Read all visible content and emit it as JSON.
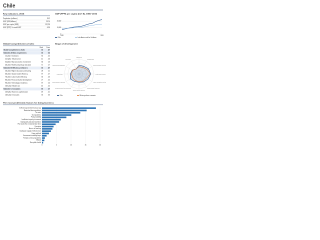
{
  "header": {
    "country": "Chile"
  },
  "key_indicators": {
    "title": "Key indicators, 2016",
    "rows": [
      [
        "Population (millions)",
        "18.2"
      ],
      [
        "GDP (US$ billions)",
        "247.0"
      ],
      [
        "GDP per capita (US$)",
        "13,576"
      ],
      [
        "GDP (PPP) % world GDP",
        "0.34"
      ]
    ]
  },
  "gdp_chart": {
    "type": "line",
    "title": "GDP (PPP) per capita (int'l $), 1990–2016",
    "x": [
      1990,
      1992,
      1994,
      1996,
      1998,
      2000,
      2002,
      2004,
      2006,
      2008,
      2010,
      2012,
      2014,
      2016
    ],
    "series": [
      {
        "name": "Chile",
        "color": "#1f4e8c",
        "values": [
          7000,
          8000,
          8900,
          10200,
          10900,
          11200,
          11700,
          13000,
          14600,
          16100,
          17000,
          19600,
          21300,
          22500
        ]
      },
      {
        "name": "Latin America and the Caribbean",
        "color": "#9dc3e6",
        "values": [
          8200,
          8600,
          9100,
          9400,
          9900,
          10200,
          10100,
          10800,
          11900,
          13000,
          13500,
          14600,
          15200,
          15300
        ]
      }
    ],
    "xlim": [
      1990,
      2016
    ],
    "ylim": [
      0,
      25000
    ],
    "yticks": [
      0,
      {
        "value": 10000,
        "label": "10,000"
      },
      {
        "value": 20000,
        "label": "20,000"
      }
    ]
  },
  "gci": {
    "title": "Global Competitiveness Index",
    "header": [
      "",
      "Rank",
      "Score"
    ],
    "rows": [
      [
        "Global Competitiveness Index",
        "33",
        "4.7"
      ],
      [
        "Subindex A: Basic requirements",
        "33",
        "5.2"
      ],
      [
        "1st pillar: Institutions",
        "35",
        "4.5"
      ],
      [
        "2nd pillar: Infrastructure",
        "41",
        "4.6"
      ],
      [
        "3rd pillar: Macroeconomic environment",
        "36",
        "5.3"
      ],
      [
        "4th pillar: Health and primary education",
        "71",
        "5.7"
      ],
      [
        "Subindex B: Efficiency enhancers",
        "33",
        "4.7"
      ],
      [
        "5th pillar: Higher education and training",
        "28",
        "5.1"
      ],
      [
        "6th pillar: Goods market efficiency",
        "37",
        "4.7"
      ],
      [
        "7th pillar: Labor market efficiency",
        "53",
        "4.3"
      ],
      [
        "8th pillar: Financial market development",
        "27",
        "4.5"
      ],
      [
        "9th pillar: Technological readiness",
        "37",
        "5.0"
      ],
      [
        "10th pillar: Market size",
        "45",
        "4.5"
      ],
      [
        "Subindex C: Innovation",
        "50",
        "3.7"
      ],
      [
        "11th pillar: Business sophistication",
        "49",
        "4.1"
      ],
      [
        "12th pillar: Innovation",
        "53",
        "3.3"
      ]
    ]
  },
  "stage_chart": {
    "type": "radar",
    "title": "Stage of development",
    "categories": [
      "Institutions",
      "Infrastructure",
      "Macroeconomic environment",
      "Health and primary education",
      "Higher education and training",
      "Goods market efficiency",
      "Labor market efficiency",
      "Financial market development",
      "Technological readiness",
      "Market size",
      "Business sophistication",
      "Innovation"
    ],
    "series": [
      {
        "name": "Chile",
        "color": "#1f4e8c",
        "values": [
          4.5,
          4.6,
          5.3,
          5.7,
          5.1,
          4.7,
          4.3,
          4.5,
          5.0,
          4.5,
          4.1,
          3.3
        ]
      },
      {
        "name": "Efficiency-driven economies",
        "color": "#e07b39",
        "values": [
          3.9,
          4.0,
          4.7,
          5.5,
          4.4,
          4.3,
          4.1,
          4.0,
          3.9,
          4.0,
          4.0,
          3.3
        ]
      }
    ],
    "rlim": [
      1,
      7
    ]
  },
  "factors_chart": {
    "type": "hbar",
    "title": "The most problematic factors for doing business",
    "categories": [
      "Inefficient government bureaucracy",
      "Restrictive labor regulations",
      "Tax rates",
      "Tax regulations",
      "Policy instability",
      "Insufficient capacity to innovate",
      "Inadequately educated workforce",
      "Poor work ethic in national labor force",
      "Corruption",
      "Access to financing",
      "Inadequate supply of infrastructure",
      "Crime and theft",
      "Government instability/coups",
      "Foreign currency regulations",
      "Inflation",
      "Poor public health"
    ],
    "values": [
      18.6,
      15.4,
      13.2,
      10.1,
      8.4,
      6.5,
      5.9,
      4.7,
      4.0,
      3.6,
      3.1,
      2.4,
      1.6,
      1.0,
      0.8,
      0.4
    ],
    "color": "#2e75b6",
    "xlim": [
      0,
      20
    ],
    "xticks": [
      0,
      5,
      10,
      15,
      20
    ]
  }
}
